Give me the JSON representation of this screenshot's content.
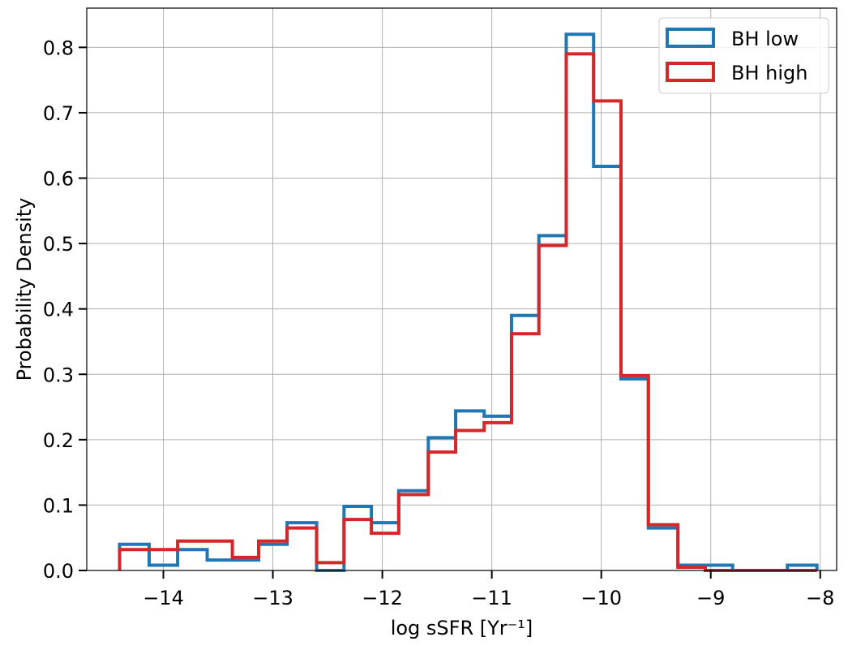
{
  "chart_data": {
    "type": "histogram-step",
    "xlabel": "log sSFR [Yr⁻¹]",
    "ylabel": "Probability Density",
    "xlim": [
      -14.7,
      -7.85
    ],
    "ylim": [
      0,
      0.86
    ],
    "xticks": [
      -14,
      -13,
      -12,
      -11,
      -10,
      -9,
      -8
    ],
    "xtick_labels": [
      "−14",
      "−13",
      "−12",
      "−11",
      "−10",
      "−9",
      "−8"
    ],
    "yticks": [
      0,
      0.1,
      0.2,
      0.3,
      0.4,
      0.5,
      0.6,
      0.7,
      0.8
    ],
    "ytick_labels": [
      "0.0",
      "0.1",
      "0.2",
      "0.3",
      "0.4",
      "0.5",
      "0.6",
      "0.7",
      "0.8"
    ],
    "grid": true,
    "legend_position": "top-right",
    "bin_edges": [
      -14.4,
      -14.13,
      -13.87,
      -13.6,
      -13.37,
      -13.13,
      -12.87,
      -12.6,
      -12.35,
      -12.1,
      -11.85,
      -11.58,
      -11.33,
      -11.07,
      -10.82,
      -10.57,
      -10.32,
      -10.07,
      -9.82,
      -9.57,
      -9.3,
      -9.05,
      -8.8,
      -8.55,
      -8.3,
      -8.03
    ],
    "series": [
      {
        "name": "BH low",
        "color": "#1f77b4",
        "values": [
          0.04,
          0.008,
          0.032,
          0.016,
          0.016,
          0.04,
          0.073,
          0.0,
          0.098,
          0.073,
          0.122,
          0.203,
          0.244,
          0.236,
          0.39,
          0.512,
          0.82,
          0.618,
          0.293,
          0.065,
          0.008,
          0.008,
          0.0,
          0.0,
          0.008
        ]
      },
      {
        "name": "BH high",
        "color": "#d62728",
        "values": [
          0.032,
          0.032,
          0.045,
          0.045,
          0.02,
          0.045,
          0.065,
          0.012,
          0.078,
          0.057,
          0.116,
          0.181,
          0.214,
          0.226,
          0.362,
          0.497,
          0.79,
          0.718,
          0.298,
          0.07,
          0.005,
          0.0,
          0.0,
          0.0,
          0.0
        ]
      }
    ]
  }
}
